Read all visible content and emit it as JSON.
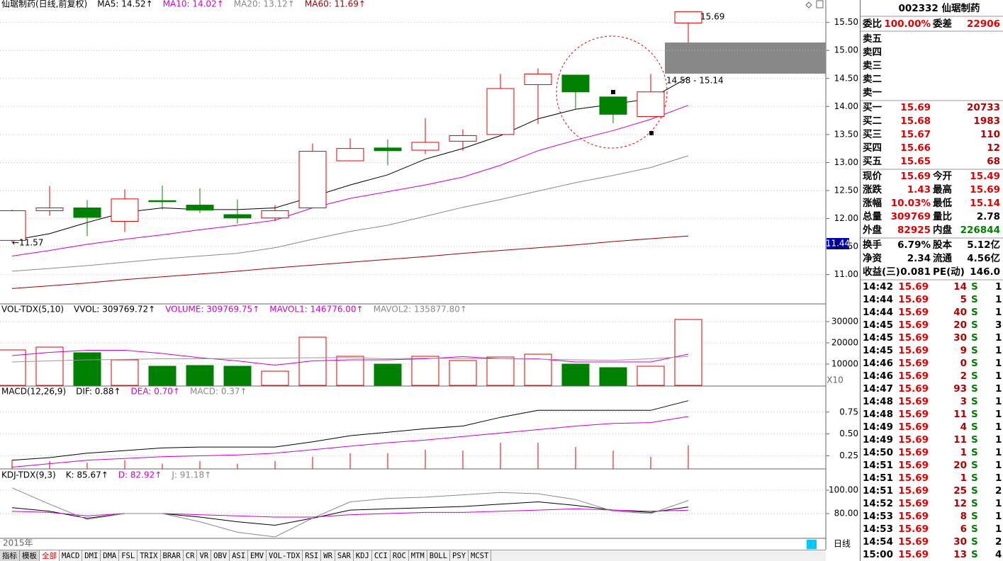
{
  "price_chart": {
    "type": "candlestick",
    "header": [
      {
        "text": "仙琚制药(日线,前复权)",
        "color": "#000000"
      },
      {
        "text": "MA5: 14.52↑",
        "color": "#000000"
      },
      {
        "text": "MA10: 14.02↑",
        "color": "#cc00cc"
      },
      {
        "text": "MA20: 13.12↑",
        "color": "#888888"
      },
      {
        "text": "MA60: 11.69↑",
        "color": "#990000"
      }
    ],
    "open": [
      11.61,
      12.14,
      12.19,
      11.95,
      12.32,
      12.24,
      12.07,
      12.01,
      12.19,
      13.03,
      13.26,
      13.22,
      13.38,
      13.5,
      14.39,
      14.56,
      14.17,
      13.82,
      15.49
    ],
    "high": [
      12.16,
      12.58,
      12.33,
      12.52,
      12.59,
      12.54,
      12.34,
      12.24,
      13.34,
      13.43,
      13.41,
      13.79,
      13.59,
      14.58,
      14.68,
      14.56,
      14.17,
      14.58,
      15.69
    ],
    "low": [
      11.57,
      12.05,
      11.69,
      11.76,
      12.16,
      12.1,
      11.91,
      11.95,
      12.19,
      13.03,
      12.95,
      13.15,
      13.21,
      13.5,
      13.69,
      13.94,
      13.7,
      13.82,
      15.14
    ],
    "close": [
      12.14,
      12.19,
      12.02,
      12.35,
      12.3,
      12.15,
      12.01,
      12.14,
      13.2,
      13.25,
      13.21,
      13.36,
      13.48,
      14.32,
      14.58,
      14.26,
      13.86,
      14.26,
      15.69
    ],
    "up_color": "#e00000",
    "down_color": "#008000",
    "series": [
      {
        "color": "#000000",
        "values": [
          11.61,
          11.73,
          11.93,
          12.11,
          12.19,
          12.16,
          12.16,
          12.19,
          12.39,
          12.6,
          12.78,
          13.06,
          13.25,
          13.48,
          13.78,
          13.95,
          14.04,
          14.14,
          14.52
        ]
      },
      {
        "color": "#cc00cc",
        "values": [
          11.33,
          11.43,
          11.54,
          11.63,
          11.71,
          11.8,
          11.88,
          11.97,
          12.19,
          12.36,
          12.48,
          12.6,
          12.74,
          12.95,
          13.21,
          13.4,
          13.57,
          13.77,
          14.02
        ]
      },
      {
        "color": "#888888",
        "values": [
          11.06,
          11.11,
          11.16,
          11.22,
          11.28,
          11.33,
          11.38,
          11.48,
          11.63,
          11.77,
          11.88,
          12.04,
          12.2,
          12.34,
          12.49,
          12.64,
          12.77,
          12.91,
          13.12
        ]
      },
      {
        "color": "#990000",
        "values": [
          10.75,
          10.8,
          10.85,
          10.91,
          10.96,
          11.01,
          11.06,
          11.12,
          11.17,
          11.22,
          11.27,
          11.32,
          11.38,
          11.43,
          11.48,
          11.53,
          11.59,
          11.64,
          11.69
        ]
      }
    ],
    "ylim": [
      10.49,
      15.9
    ],
    "yticks": [
      {
        "value": 15.5,
        "label": "15.50"
      },
      {
        "value": 15,
        "label": "15.00"
      },
      {
        "value": 14.5,
        "label": "14.50"
      },
      {
        "value": 14,
        "label": "14.00"
      },
      {
        "value": 13.5,
        "label": "13.50"
      },
      {
        "value": 13,
        "label": "13.00"
      },
      {
        "value": 12.5,
        "label": "12.50"
      },
      {
        "value": 12,
        "label": "12.00"
      },
      {
        "value": 11.5,
        "label": "11.50"
      },
      {
        "value": 11,
        "label": "11.00"
      }
    ],
    "grid": true,
    "annotations": [
      "15.69",
      "14.58 - 15.14",
      "←11.57"
    ],
    "cursor_label": "11.44"
  },
  "volume_chart": {
    "type": "bar",
    "header": [
      {
        "text": "VOL-TDX(5,10)",
        "color": "#000000"
      },
      {
        "text": "VVOL: 309769.72↑",
        "color": "#000000"
      },
      {
        "text": "VOLUME: 309769.75↑",
        "color": "#cc00cc"
      },
      {
        "text": "MAVOL1: 146776.00↑",
        "color": "#cc00cc"
      },
      {
        "text": "MAVOL2: 135877.80↑",
        "color": "#888888"
      }
    ],
    "values": [
      16667,
      18000,
      15333,
      12000,
      9000,
      9333,
      9000,
      6667,
      22667,
      13667,
      10000,
      13667,
      11667,
      13333,
      14667,
      10000,
      8333,
      9000,
      30977
    ],
    "series": [
      {
        "color": "#cc00cc",
        "values": [
          14000,
          15500,
          16500,
          16500,
          15000,
          13000,
          11500,
          9500,
          11500,
          12000,
          12000,
          12500,
          13500,
          12500,
          12500,
          11000,
          11000,
          11000,
          14678
        ]
      },
      {
        "color": "#999999",
        "values": [
          11000,
          11500,
          12000,
          12200,
          12500,
          12500,
          12700,
          12800,
          13000,
          13000,
          12500,
          12800,
          12600,
          12500,
          12300,
          12000,
          11800,
          12500,
          13588
        ]
      }
    ],
    "ylim": [
      0,
      38000
    ],
    "yticks": [
      10000,
      20000,
      30000
    ],
    "grid": true,
    "scale_label": "X10"
  },
  "macd_chart": {
    "type": "macd",
    "header": [
      {
        "text": "MACD(12,26,9)",
        "color": "#000000"
      },
      {
        "text": "DIF: 0.88↑",
        "color": "#000000"
      },
      {
        "text": "DEA: 0.70↑",
        "color": "#cc00cc"
      },
      {
        "text": "MACD: 0.37↑",
        "color": "#888888"
      }
    ],
    "values": [
      0.2,
      0.19,
      0.17,
      0.2,
      0.16,
      0.19,
      0.16,
      0.19,
      0.24,
      0.28,
      0.28,
      0.32,
      0.31,
      0.4,
      0.4,
      0.35,
      0.31,
      0.24,
      0.37
    ],
    "bar_color": "#e00000",
    "series": [
      {
        "color": "#000000",
        "values": [
          0.2,
          0.23,
          0.28,
          0.31,
          0.34,
          0.35,
          0.35,
          0.35,
          0.41,
          0.48,
          0.52,
          0.56,
          0.59,
          0.69,
          0.77,
          0.77,
          0.77,
          0.77,
          0.88
        ]
      },
      {
        "color": "#cc00cc",
        "values": [
          0.12,
          0.16,
          0.2,
          0.22,
          0.24,
          0.25,
          0.26,
          0.28,
          0.32,
          0.36,
          0.4,
          0.43,
          0.47,
          0.51,
          0.55,
          0.59,
          0.62,
          0.63,
          0.7
        ]
      }
    ],
    "ylim": [
      0.1,
      1.04
    ],
    "yticks": [
      0.25,
      {
        "value": 0.5,
        "label": "0.50"
      },
      0.75
    ],
    "grid": true
  },
  "kdj_chart": {
    "type": "line",
    "header": [
      {
        "text": "KDJ-TDX(9,3)",
        "color": "#000000"
      },
      {
        "text": "K: 85.67↑",
        "color": "#000000"
      },
      {
        "text": "D: 82.92↑",
        "color": "#cc00cc"
      },
      {
        "text": "J: 91.18↑",
        "color": "#888888"
      }
    ],
    "series": [
      {
        "color": "#000000",
        "values": [
          85,
          82,
          76,
          80,
          80,
          77,
          73,
          70,
          76,
          83,
          84,
          85,
          86,
          88,
          90,
          87,
          83,
          81,
          85.67
        ]
      },
      {
        "color": "#cc00cc",
        "values": [
          82,
          81,
          78,
          80,
          80,
          79,
          78,
          77,
          77,
          79,
          80,
          81,
          81,
          82,
          83,
          84,
          83,
          82,
          82.92
        ]
      },
      {
        "color": "#888888",
        "values": [
          102,
          88,
          75,
          80,
          80,
          73,
          64,
          60,
          76,
          90,
          93,
          94,
          96,
          98,
          97,
          92,
          82,
          80,
          91.18
        ]
      }
    ],
    "ylim": [
      58.8,
      117.6
    ],
    "yticks": [
      {
        "value": 80,
        "label": "80.00"
      },
      {
        "value": 100,
        "label": "100.00"
      }
    ],
    "grid": true
  },
  "quote_panel": {
    "title": "002332 仙琚制药",
    "rows": [
      [
        "委比",
        "100.00%",
        "委差",
        "22906"
      ],
      [
        "卖五"
      ],
      [
        "卖四"
      ],
      [
        "卖三"
      ],
      [
        "卖二"
      ],
      [
        "卖一"
      ],
      [
        "买一",
        "15.69",
        "20733"
      ],
      [
        "买二",
        "15.68",
        "1983"
      ],
      [
        "买三",
        "15.67",
        "110"
      ],
      [
        "买四",
        "15.66",
        "12"
      ],
      [
        "买五",
        "15.65",
        "68"
      ],
      [
        "现价",
        "15.69",
        "今开",
        "15.49"
      ],
      [
        "涨跌",
        "1.43",
        "最高",
        "15.69"
      ],
      [
        "涨幅",
        "10.03%",
        "最低",
        "15.14"
      ],
      [
        "总量",
        "309769",
        "量比",
        "2.78"
      ],
      [
        "外盘",
        "82925",
        "内盘",
        "226844"
      ],
      [
        "换手",
        "6.79%",
        "股本",
        "5.12亿"
      ],
      [
        "净资",
        "2.34",
        "流通",
        "4.56亿"
      ],
      [
        "收益(三)",
        "0.081",
        "PE(动)",
        "146.0"
      ]
    ]
  },
  "trades_table": {
    "rows": [
      [
        "14:42",
        "15.69",
        "14",
        "S",
        "1"
      ],
      [
        "14:44",
        "15.69",
        "5",
        "S",
        "1"
      ],
      [
        "14:44",
        "15.69",
        "40",
        "S",
        "1"
      ],
      [
        "14:45",
        "15.69",
        "20",
        "S",
        "3"
      ],
      [
        "14:45",
        "15.69",
        "30",
        "S",
        "1"
      ],
      [
        "14:45",
        "15.69",
        "9",
        "S",
        "1"
      ],
      [
        "14:46",
        "15.69",
        "0",
        "S",
        "1"
      ],
      [
        "14:46",
        "15.69",
        "2",
        "S",
        "1"
      ],
      [
        "14:47",
        "15.69",
        "93",
        "S",
        "1"
      ],
      [
        "14:48",
        "15.69",
        "3",
        "S",
        "1"
      ],
      [
        "14:48",
        "15.69",
        "11",
        "S",
        "1"
      ],
      [
        "14:49",
        "15.69",
        "4",
        "S",
        "1"
      ],
      [
        "14:49",
        "15.69",
        "11",
        "S",
        "1"
      ],
      [
        "14:50",
        "15.69",
        "1",
        "S",
        "1"
      ],
      [
        "14:51",
        "15.69",
        "20",
        "S",
        "1"
      ],
      [
        "14:51",
        "15.69",
        "1",
        "S",
        "1"
      ],
      [
        "14:51",
        "15.69",
        "25",
        "S",
        "2"
      ],
      [
        "14:52",
        "15.69",
        "12",
        "S",
        "1"
      ],
      [
        "14:53",
        "15.69",
        "8",
        "S",
        "1"
      ],
      [
        "14:53",
        "15.69",
        "6",
        "S",
        "1"
      ],
      [
        "14:54",
        "15.69",
        "30",
        "S",
        "2"
      ],
      [
        "15:00",
        "15.69",
        "13",
        "S",
        "4"
      ]
    ]
  },
  "footer": {
    "year": "2015年",
    "period": "日线",
    "tabs": [
      "指标",
      "模板",
      "全部",
      "MACD",
      "DMI",
      "DMA",
      "FSL",
      "TRIX",
      "BRAR",
      "CR",
      "VR",
      "OBV",
      "ASI",
      "EMV",
      "VOL-TDX",
      "RSI",
      "WR",
      "SAR",
      "KDJ",
      "CCI",
      "ROC",
      "MTM",
      "BOLL",
      "PSY",
      "MCST"
    ]
  }
}
